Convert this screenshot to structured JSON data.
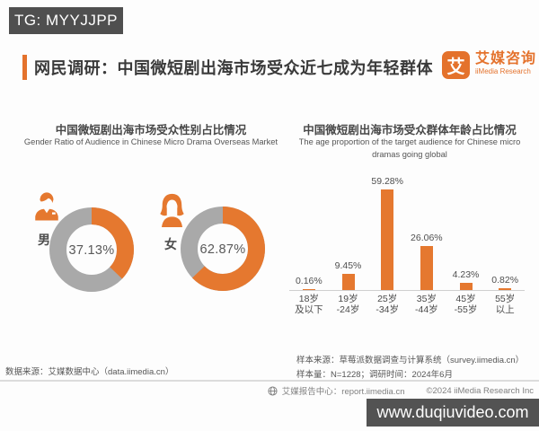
{
  "top_watermark": {
    "label": "TG: MYYJJPP",
    "bg": "#4f4f4f"
  },
  "header": {
    "title": "网民调研：中国微短剧出海市场受众近七成为年轻群体"
  },
  "brand": {
    "logo_char": "艾",
    "name_cn": "艾媒咨询",
    "name_en": "iiMedia Research",
    "color": "#E4722C"
  },
  "colors": {
    "accent_orange": "#E4722C",
    "chart_orange": "#E5782F",
    "donut_gray": "#A9A9A9",
    "watermark_bg": "#535353"
  },
  "chart_data": [
    {
      "type": "pie",
      "variant": "two-donuts",
      "title": "中国微短剧出海市场受众性别占比情况",
      "subtitle": "Gender Ratio of Audience in Chinese Micro Drama Overseas Market",
      "series": [
        {
          "name": "男",
          "value": 37.13,
          "label": "37.13%"
        },
        {
          "name": "女",
          "value": 62.87,
          "label": "62.87%"
        }
      ],
      "colors": {
        "filled": "#E5782F",
        "rest": "#A9A9A9"
      },
      "legend_position": "left-of-each-donut",
      "grid": false
    },
    {
      "type": "bar",
      "title": "中国微短剧出海市场受众群体年龄占比情况",
      "subtitle_lines": [
        "The age proportion of the target audience for Chinese micro",
        "dramas going global"
      ],
      "categories": [
        "18岁及以下",
        "19岁-24岁",
        "25岁-34岁",
        "35岁-44岁",
        "45岁-55岁",
        "55岁以上"
      ],
      "tick_lines": [
        [
          "18岁",
          "及以下"
        ],
        [
          "19岁",
          "-24岁"
        ],
        [
          "25岁",
          "-34岁"
        ],
        [
          "35岁",
          "-44岁"
        ],
        [
          "45岁",
          "-55岁"
        ],
        [
          "55岁",
          "以上"
        ]
      ],
      "values": [
        0.16,
        9.45,
        59.28,
        26.06,
        4.23,
        0.82
      ],
      "value_labels": [
        "0.16%",
        "9.45%",
        "59.28%",
        "26.06%",
        "4.23%",
        "0.82%"
      ],
      "ylim": [
        0,
        65
      ],
      "bar_color": "#E5782F",
      "grid": false,
      "legend": "none"
    }
  ],
  "footnotes": {
    "left": "数据来源：艾媒数据中心（data.iimedia.cn）",
    "right_line1": "样本来源：草莓派数据调查与计算系统（survey.iimedia.cn）",
    "right_line2": "样本量：N=1228；调研时间：2024年6月"
  },
  "footer": {
    "report_center": "艾媒报告中心：report.iimedia.cn",
    "copyright": "©2024  iiMedia Research  Inc"
  },
  "bottom_watermark": {
    "label": "www.duqiuvideo.com"
  }
}
